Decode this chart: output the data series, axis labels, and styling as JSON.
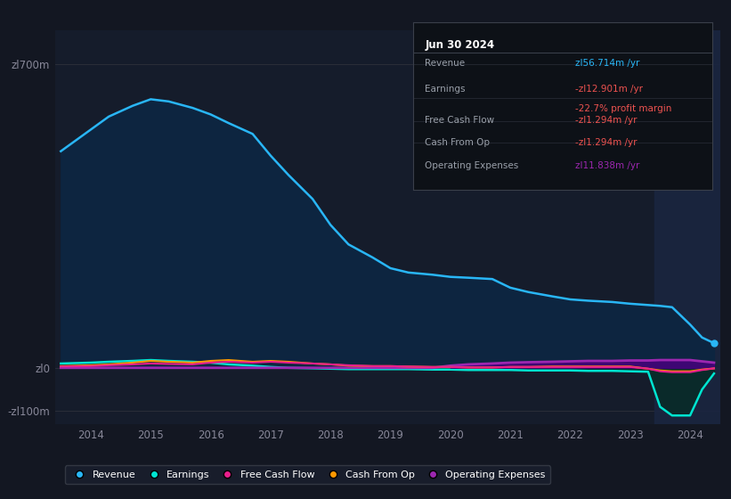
{
  "bg_color": "#131722",
  "plot_bg_color": "#151c2b",
  "grid_color": "#2a2e39",
  "title_box": {
    "date": "Jun 30 2024",
    "rows": [
      {
        "label": "Revenue",
        "value": "zl56.714m /yr",
        "value_color": "#29b6f6"
      },
      {
        "label": "Earnings",
        "value": "-zl12.901m /yr",
        "value_color": "#ef5350",
        "sub": "-22.7% profit margin",
        "sub_color": "#ef5350"
      },
      {
        "label": "Free Cash Flow",
        "value": "-zl1.294m /yr",
        "value_color": "#ef5350"
      },
      {
        "label": "Cash From Op",
        "value": "-zl1.294m /yr",
        "value_color": "#ef5350"
      },
      {
        "label": "Operating Expenses",
        "value": "zl11.838m /yr",
        "value_color": "#9c27b0"
      }
    ]
  },
  "years": [
    2013.5,
    2014.0,
    2014.3,
    2014.7,
    2015.0,
    2015.3,
    2015.7,
    2016.0,
    2016.3,
    2016.7,
    2017.0,
    2017.3,
    2017.7,
    2018.0,
    2018.3,
    2018.7,
    2019.0,
    2019.3,
    2019.7,
    2020.0,
    2020.3,
    2020.7,
    2021.0,
    2021.3,
    2021.7,
    2022.0,
    2022.3,
    2022.7,
    2023.0,
    2023.3,
    2023.5,
    2023.7,
    2024.0,
    2024.2,
    2024.4
  ],
  "revenue": [
    500,
    550,
    580,
    605,
    620,
    615,
    600,
    585,
    565,
    540,
    490,
    445,
    390,
    330,
    285,
    255,
    230,
    220,
    215,
    210,
    208,
    205,
    185,
    175,
    165,
    158,
    155,
    152,
    148,
    145,
    143,
    140,
    100,
    70,
    57
  ],
  "earnings": [
    10,
    12,
    14,
    16,
    18,
    16,
    14,
    12,
    8,
    5,
    2,
    0,
    -1,
    -2,
    -3,
    -3,
    -3,
    -3,
    -4,
    -4,
    -5,
    -5,
    -5,
    -6,
    -6,
    -6,
    -7,
    -7,
    -8,
    -9,
    -90,
    -110,
    -110,
    -50,
    -13
  ],
  "free_cash_flow": [
    3,
    4,
    6,
    8,
    10,
    9,
    8,
    12,
    14,
    12,
    14,
    12,
    10,
    8,
    6,
    4,
    4,
    3,
    2,
    2,
    1,
    1,
    2,
    2,
    2,
    2,
    2,
    2,
    2,
    -2,
    -8,
    -10,
    -10,
    -5,
    -1.3
  ],
  "cash_from_op": [
    4,
    6,
    8,
    12,
    16,
    14,
    12,
    16,
    18,
    14,
    16,
    14,
    10,
    8,
    5,
    4,
    4,
    3,
    2,
    2,
    1,
    1,
    2,
    2,
    3,
    3,
    3,
    3,
    3,
    -2,
    -6,
    -8,
    -8,
    -4,
    -1.3
  ],
  "operating_expenses": [
    0,
    0,
    0,
    0,
    0,
    0,
    0,
    0,
    0,
    0,
    0,
    0,
    0,
    0,
    0,
    0,
    0,
    0,
    0,
    5,
    8,
    10,
    12,
    13,
    14,
    15,
    16,
    16,
    17,
    17,
    18,
    18,
    18,
    15,
    12
  ],
  "revenue_color": "#29b6f6",
  "revenue_fill": "#0d2540",
  "earnings_color": "#00e5d1",
  "earnings_fill_pos": "#0a3040",
  "earnings_fill_neg": "#1a3030",
  "free_cash_flow_color": "#e91e8c",
  "cash_from_op_color": "#ff9800",
  "operating_expenses_color": "#9c27b0",
  "ylim": [
    -130,
    780
  ],
  "ytick_vals": [
    -100,
    0,
    700
  ],
  "ytick_labels": [
    "-zl100m",
    "zl0",
    "zl700m"
  ],
  "xticks": [
    2014,
    2015,
    2016,
    2017,
    2018,
    2019,
    2020,
    2021,
    2022,
    2023,
    2024
  ],
  "xlim": [
    2013.4,
    2024.5
  ],
  "shade_start": 2023.4,
  "shade_end": 2024.5,
  "legend_items": [
    {
      "label": "Revenue",
      "color": "#29b6f6"
    },
    {
      "label": "Earnings",
      "color": "#00e5d1"
    },
    {
      "label": "Free Cash Flow",
      "color": "#e91e8c"
    },
    {
      "label": "Cash From Op",
      "color": "#ff9800"
    },
    {
      "label": "Operating Expenses",
      "color": "#9c27b0"
    }
  ]
}
